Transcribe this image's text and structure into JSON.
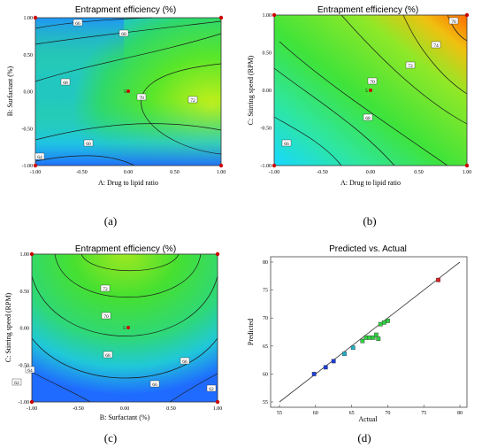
{
  "captions": [
    "(a)",
    "(b)",
    "(c)",
    "(d)"
  ],
  "chart_data": [
    {
      "type": "contour",
      "title": "Entrapment efficiency (%)",
      "xlabel": "A: Drug to lipid ratio",
      "ylabel": "B: Surfactant (%)",
      "xlim": [
        -1.0,
        1.0
      ],
      "ylim": [
        -1.0,
        1.0
      ],
      "xticks": [
        "-1.00",
        "-0.50",
        "0.00",
        "0.50",
        "1.00"
      ],
      "yticks": [
        "-1.00",
        "-0.50",
        "0.00",
        "0.50",
        "1.00"
      ],
      "contour_levels": [
        "58",
        "60",
        "64",
        "66",
        "68",
        "70",
        "72"
      ],
      "colors": {
        "low": "#1b5cff",
        "mid": "#30e030",
        "high": "#ff7a00"
      },
      "center_point": {
        "x": 0.0,
        "y": 0.0,
        "label": "5"
      }
    },
    {
      "type": "contour",
      "title": "Entrapment efficiency (%)",
      "xlabel": "A: Drug to lipid ratio",
      "ylabel": "C: Stirring speed (RPM)",
      "xlim": [
        -1.0,
        1.0
      ],
      "ylim": [
        -1.0,
        1.0
      ],
      "xticks": [
        "-1.00",
        "-0.50",
        "0.00",
        "0.50",
        "1.00"
      ],
      "yticks": [
        "-1.00",
        "-0.50",
        "0.00",
        "0.50",
        "1.00"
      ],
      "contour_levels": [
        "66",
        "68",
        "70",
        "72",
        "74",
        "76"
      ],
      "colors": {
        "low": "#1b5cff",
        "mid": "#30e030",
        "high": "#ff7a00"
      },
      "center_point": {
        "x": 0.0,
        "y": 0.0,
        "label": "5"
      }
    },
    {
      "type": "contour",
      "title": "Entrapment efficiency (%)",
      "xlabel": "B: Surfactant (%)",
      "ylabel": "C: Stirring speed (RPM)",
      "xlim": [
        -1.0,
        1.0
      ],
      "ylim": [
        -1.0,
        1.0
      ],
      "xticks": [
        "-1.00",
        "-0.50",
        "0.00",
        "0.50",
        "1.00"
      ],
      "yticks": [
        "-1.00",
        "-0.50",
        "0.00",
        "0.50",
        "1.00"
      ],
      "contour_levels": [
        "62",
        "64",
        "66",
        "68",
        "70",
        "72"
      ],
      "colors": {
        "low": "#1b5cff",
        "mid": "#30e030",
        "high": "#ff7a00"
      },
      "center_point": {
        "x": 0.0,
        "y": 0.0,
        "label": "5"
      }
    },
    {
      "type": "scatter",
      "title": "Predicted vs. Actual",
      "xlabel": "Actual",
      "ylabel": "Predicted",
      "xlim": [
        55,
        80
      ],
      "ylim": [
        55,
        80
      ],
      "xticks": [
        "55",
        "60",
        "65",
        "70",
        "75",
        "80"
      ],
      "yticks": [
        "55",
        "60",
        "65",
        "70",
        "75",
        "80"
      ],
      "points": [
        {
          "x": 59.8,
          "y": 60.0
        },
        {
          "x": 61.4,
          "y": 61.2
        },
        {
          "x": 62.5,
          "y": 62.3
        },
        {
          "x": 64.0,
          "y": 63.6
        },
        {
          "x": 65.2,
          "y": 64.7
        },
        {
          "x": 66.5,
          "y": 65.9
        },
        {
          "x": 67.0,
          "y": 66.5
        },
        {
          "x": 67.5,
          "y": 66.5
        },
        {
          "x": 68.0,
          "y": 66.5
        },
        {
          "x": 68.4,
          "y": 67.0
        },
        {
          "x": 68.7,
          "y": 66.3
        },
        {
          "x": 69.0,
          "y": 68.9
        },
        {
          "x": 69.5,
          "y": 69.2
        },
        {
          "x": 70.0,
          "y": 69.5
        },
        {
          "x": 77.0,
          "y": 76.8
        }
      ],
      "fit_line": [
        [
          55.0,
          55.0
        ],
        [
          80.0,
          80.0
        ]
      ]
    }
  ]
}
